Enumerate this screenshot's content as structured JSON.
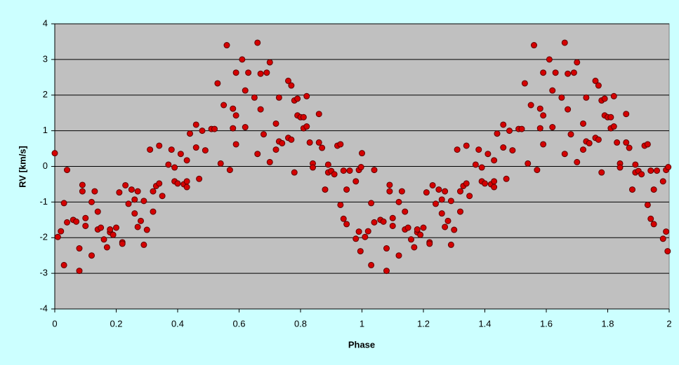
{
  "chart_data": {
    "type": "scatter",
    "x_label": "Phase",
    "y_label": "RV [km/s]",
    "color": "#d40000",
    "grid": true,
    "xlim": [
      0,
      2
    ],
    "xticks": [
      0,
      0.2,
      0.4,
      0.6,
      0.8,
      1,
      1.2,
      1.4,
      1.6,
      1.8,
      2
    ],
    "ylim": [
      -4,
      4
    ],
    "yticks": [
      -4,
      -3,
      -2,
      -1,
      0,
      1,
      2,
      3,
      4
    ],
    "x": [
      0,
      0.01,
      0.02,
      0.03,
      0.03,
      0.04,
      0.04,
      0.06,
      0.07,
      0.08,
      0.08,
      0.09,
      0.09,
      0.1,
      0.1,
      0.12,
      0.12,
      0.13,
      0.14,
      0.14,
      0.15,
      0.16,
      0.17,
      0.18,
      0.18,
      0.19,
      0.2,
      0.21,
      0.22,
      0.22,
      0.23,
      0.24,
      0.25,
      0.26,
      0.26,
      0.27,
      0.28,
      0.27,
      0.29,
      0.29,
      0.3,
      0.31,
      0.32,
      0.32,
      0.33,
      0.34,
      0.34,
      0.35,
      0.37,
      0.38,
      0.39,
      0.39,
      0.4,
      0.41,
      0.42,
      0.43,
      0.43,
      0.43,
      0.44,
      0.46,
      0.46,
      0.47,
      0.48,
      0.49,
      0.51,
      0.52,
      0.53,
      0.54,
      0.55,
      0.56,
      0.57,
      0.58,
      0.58,
      0.59,
      0.59,
      0.59,
      0.61,
      0.62,
      0.62,
      0.63,
      0.65,
      0.66,
      0.66,
      0.67,
      0.67,
      0.68,
      0.69,
      0.7,
      0.7,
      0.72,
      0.72,
      0.73,
      0.73,
      0.74,
      0.76,
      0.76,
      0.77,
      0.77,
      0.78,
      0.78,
      0.79,
      0.79,
      0.8,
      0.81,
      0.81,
      0.82,
      0.82,
      0.83,
      0.84,
      0.84,
      0.86,
      0.86,
      0.87,
      0.88,
      0.89,
      0.89,
      0.9,
      0.91,
      0.92,
      0.93,
      0.93,
      0.94,
      0.94,
      0.95,
      0.95,
      0.96,
      0.98,
      0.98,
      0.99,
      0.99,
      0.997,
      0.995,
      1,
      1.01,
      1.02,
      1.03,
      1.03,
      1.04,
      1.04,
      1.06,
      1.07,
      1.08,
      1.08,
      1.09,
      1.09,
      1.1,
      1.1,
      1.12,
      1.12,
      1.13,
      1.14,
      1.14,
      1.15,
      1.16,
      1.17,
      1.18,
      1.18,
      1.19,
      1.2,
      1.21,
      1.22,
      1.22,
      1.23,
      1.24,
      1.25,
      1.26,
      1.26,
      1.27,
      1.28,
      1.27,
      1.29,
      1.29,
      1.3,
      1.31,
      1.32,
      1.32,
      1.33,
      1.34,
      1.34,
      1.35,
      1.37,
      1.38,
      1.39,
      1.39,
      1.4,
      1.41,
      1.42,
      1.43,
      1.43,
      1.43,
      1.44,
      1.46,
      1.46,
      1.47,
      1.48,
      1.49,
      1.51,
      1.52,
      1.53,
      1.54,
      1.55,
      1.56,
      1.57,
      1.58,
      1.58,
      1.59,
      1.59,
      1.59,
      1.61,
      1.62,
      1.62,
      1.63,
      1.65,
      1.66,
      1.66,
      1.67,
      1.67,
      1.68,
      1.69,
      1.7,
      1.7,
      1.72,
      1.72,
      1.73,
      1.73,
      1.74,
      1.76,
      1.76,
      1.77,
      1.77,
      1.78,
      1.78,
      1.79,
      1.79,
      1.8,
      1.81,
      1.81,
      1.82,
      1.82,
      1.83,
      1.84,
      1.84,
      1.86,
      1.86,
      1.87,
      1.88,
      1.89,
      1.89,
      1.9,
      1.91,
      1.92,
      1.93,
      1.93,
      1.94,
      1.94,
      1.95,
      1.95,
      1.96,
      1.98,
      1.98,
      1.99,
      1.99,
      1.997,
      1.995
    ],
    "values": [
      0.37,
      -1.98,
      -1.82,
      -1.03,
      -2.77,
      -0.1,
      -1.57,
      -1.5,
      -1.55,
      -2.93,
      -2.3,
      -0.52,
      -0.7,
      -1.45,
      -1.67,
      -1.0,
      -2.5,
      -0.7,
      -1.27,
      -1.77,
      -1.72,
      -2.05,
      -2.27,
      -1.85,
      -1.77,
      -1.92,
      -1.72,
      -0.73,
      -2.13,
      -2.17,
      -0.53,
      -1.05,
      -0.65,
      -0.93,
      -1.32,
      -1.7,
      -1.53,
      -0.7,
      -2.2,
      -0.97,
      -1.78,
      0.47,
      -1.27,
      -0.7,
      -0.55,
      -0.48,
      0.58,
      -0.83,
      0.05,
      0.47,
      -0.42,
      -0.03,
      -0.48,
      0.35,
      -0.5,
      -0.58,
      -0.42,
      0.17,
      0.92,
      1.17,
      0.53,
      -0.35,
      1.0,
      0.45,
      1.05,
      1.05,
      2.33,
      0.08,
      1.72,
      3.4,
      -0.1,
      1.62,
      1.07,
      2.63,
      0.62,
      1.43,
      3.0,
      2.13,
      1.1,
      2.63,
      1.93,
      3.47,
      0.35,
      1.6,
      2.6,
      0.9,
      2.63,
      2.92,
      0.12,
      1.2,
      0.47,
      1.93,
      0.7,
      0.65,
      2.4,
      0.8,
      2.27,
      0.75,
      1.85,
      -0.17,
      1.43,
      1.9,
      1.38,
      1.07,
      1.38,
      1.97,
      1.12,
      0.67,
      0.08,
      -0.03,
      0.67,
      1.47,
      0.52,
      -0.65,
      -0.17,
      0.05,
      -0.13,
      -0.22,
      0.58,
      -1.08,
      0.62,
      -1.47,
      -0.12,
      -1.62,
      -0.65,
      -0.12,
      -2.03,
      -0.42,
      -1.83,
      -0.1,
      -0.02,
      -2.38,
      0.37,
      -1.98,
      -1.82,
      -1.03,
      -2.77,
      -0.1,
      -1.57,
      -1.5,
      -1.55,
      -2.93,
      -2.3,
      -0.52,
      -0.7,
      -1.45,
      -1.67,
      -1.0,
      -2.5,
      -0.7,
      -1.27,
      -1.77,
      -1.72,
      -2.05,
      -2.27,
      -1.85,
      -1.77,
      -1.92,
      -1.72,
      -0.73,
      -2.13,
      -2.17,
      -0.53,
      -1.05,
      -0.65,
      -0.93,
      -1.32,
      -1.7,
      -1.53,
      -0.7,
      -2.2,
      -0.97,
      -1.78,
      0.47,
      -1.27,
      -0.7,
      -0.55,
      -0.48,
      0.58,
      -0.83,
      0.05,
      0.47,
      -0.42,
      -0.03,
      -0.48,
      0.35,
      -0.5,
      -0.58,
      -0.42,
      0.17,
      0.92,
      1.17,
      0.53,
      -0.35,
      1.0,
      0.45,
      1.05,
      1.05,
      2.33,
      0.08,
      1.72,
      3.4,
      -0.1,
      1.62,
      1.07,
      2.63,
      0.62,
      1.43,
      3.0,
      2.13,
      1.1,
      2.63,
      1.93,
      3.47,
      0.35,
      1.6,
      2.6,
      0.9,
      2.63,
      2.92,
      0.12,
      1.2,
      0.47,
      1.93,
      0.7,
      0.65,
      2.4,
      0.8,
      2.27,
      0.75,
      1.85,
      -0.17,
      1.43,
      1.9,
      1.38,
      1.07,
      1.38,
      1.97,
      1.12,
      0.67,
      0.08,
      -0.03,
      0.67,
      1.47,
      0.52,
      -0.65,
      -0.17,
      0.05,
      -0.13,
      -0.22,
      0.58,
      -1.08,
      0.62,
      -1.47,
      -0.12,
      -1.62,
      -0.65,
      -0.12,
      -2.03,
      -0.42,
      -1.83,
      -0.1,
      -0.02,
      -2.38
    ]
  }
}
